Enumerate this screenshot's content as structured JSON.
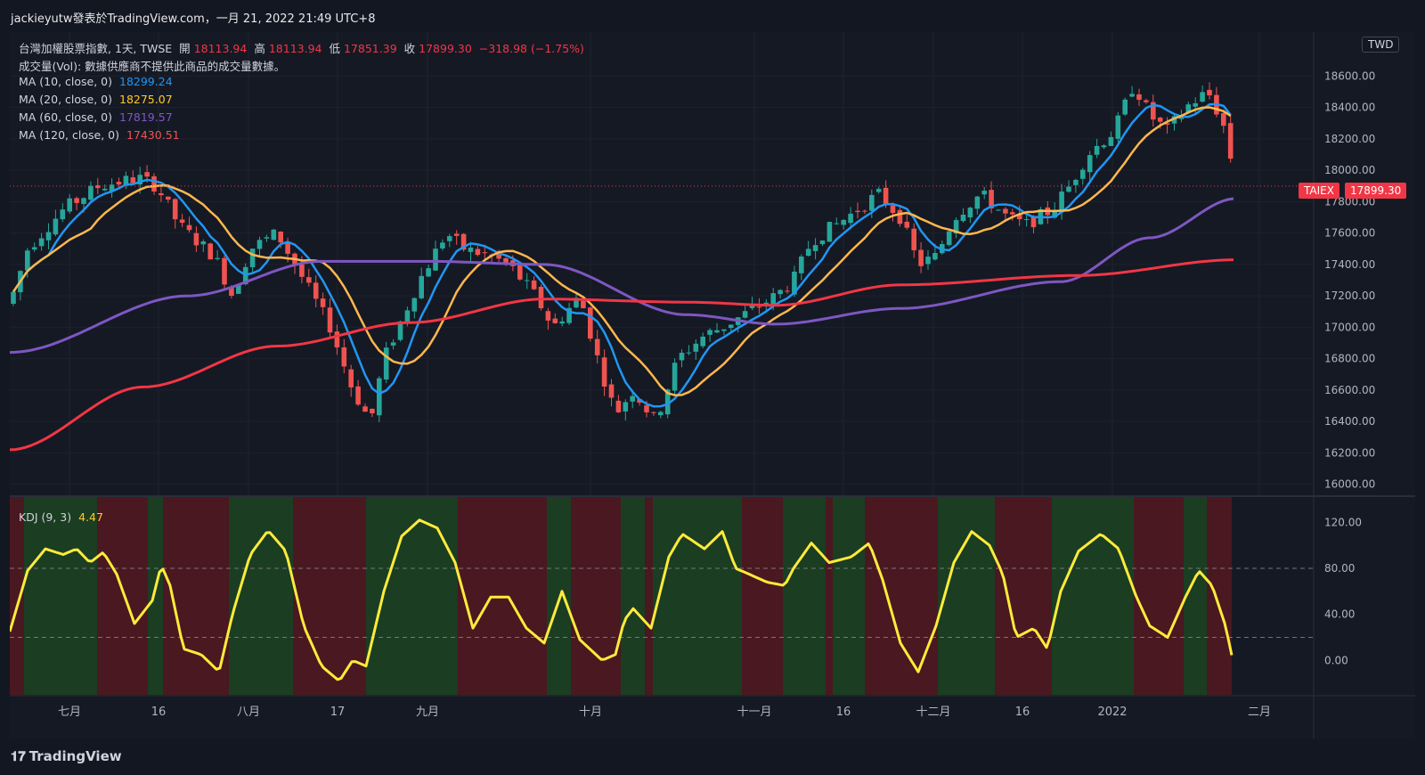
{
  "header": {
    "publisher_line": "jackieyutw發表於TradingView.com，一月 21, 2022 21:49 UTC+8"
  },
  "legend": {
    "symbol_prefix": "台灣加權股票指數, 1天, TWSE",
    "open_label": "開",
    "open": "18113.94",
    "high_label": "高",
    "high": "18113.94",
    "low_label": "低",
    "low": "17851.39",
    "close_label": "收",
    "close": "17899.30",
    "change": "−318.98 (−1.75%)",
    "volume_note": "成交量(Vol): 數據供應商不提供此商品的成交量數據。",
    "ma10_label": "MA (10, close, 0)",
    "ma10_value": "18299.24",
    "ma20_label": "MA (20, close, 0)",
    "ma20_value": "18275.07",
    "ma60_label": "MA (60, close, 0)",
    "ma60_value": "17819.57",
    "ma120_label": "MA (120, close, 0)",
    "ma120_value": "17430.51"
  },
  "kdj_legend": {
    "label": "KDJ (9, 3)",
    "value": "4.47"
  },
  "currency_badge": "TWD",
  "price_tag": {
    "symbol": "TAIEX",
    "price": "17899.30"
  },
  "footer": {
    "brand": "TradingView",
    "brand_mark": "𝟏𝟕"
  },
  "colors": {
    "up": "#26a69a",
    "down": "#ef5350",
    "ma10": "#2196f3",
    "ma20": "#ffb74d",
    "ma60": "#7e57c2",
    "ma120": "#f23645",
    "kdj": "#ffeb3b",
    "kdj_bg_up": "#1b3d22",
    "kdj_bg_down": "#4a1820"
  },
  "chart_data": {
    "type": "candlestick",
    "price_axis": {
      "ticks": [
        "18600.00",
        "18400.00",
        "18200.00",
        "18000.00",
        "17800.00",
        "17600.00",
        "17400.00",
        "17200.00",
        "17000.00",
        "16800.00",
        "16600.00",
        "16400.00",
        "16200.00",
        "16000.00"
      ],
      "range": [
        15930,
        18880
      ]
    },
    "kdj_axis": {
      "ticks": [
        "120.00",
        "80.00",
        "40.00",
        "0.00"
      ],
      "range": [
        -30,
        142
      ],
      "dashed_levels": [
        80,
        20
      ]
    },
    "time_axis": [
      "七月",
      "16",
      "八月",
      "17",
      "九月",
      "十月",
      "十一月",
      "16",
      "十二月",
      "16",
      "2022",
      "二月"
    ],
    "last_close": 17899.3
  }
}
